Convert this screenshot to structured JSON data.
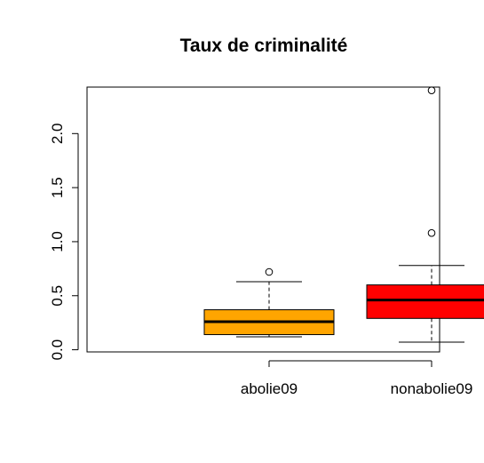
{
  "chart_data": {
    "type": "boxplot",
    "title": "Taux de criminalité",
    "xlabel": "",
    "ylabel": "",
    "ylim": [
      -0.02,
      2.43
    ],
    "yticks": [
      "0.0",
      "0.5",
      "1.0",
      "1.5",
      "2.0"
    ],
    "categories": [
      "abolie09",
      "nonabolie09"
    ],
    "boxes": [
      {
        "category": "abolie09",
        "whisker_low": 0.12,
        "q1": 0.14,
        "median": 0.26,
        "q3": 0.37,
        "whisker_high": 0.63,
        "outliers": [
          0.72
        ],
        "color": "#FFA500"
      },
      {
        "category": "nonabolie09",
        "whisker_low": 0.07,
        "q1": 0.29,
        "median": 0.46,
        "q3": 0.6,
        "whisker_high": 0.78,
        "outliers": [
          1.08,
          2.4
        ],
        "color": "#FF0000"
      }
    ],
    "grid": false,
    "legend": "none"
  }
}
